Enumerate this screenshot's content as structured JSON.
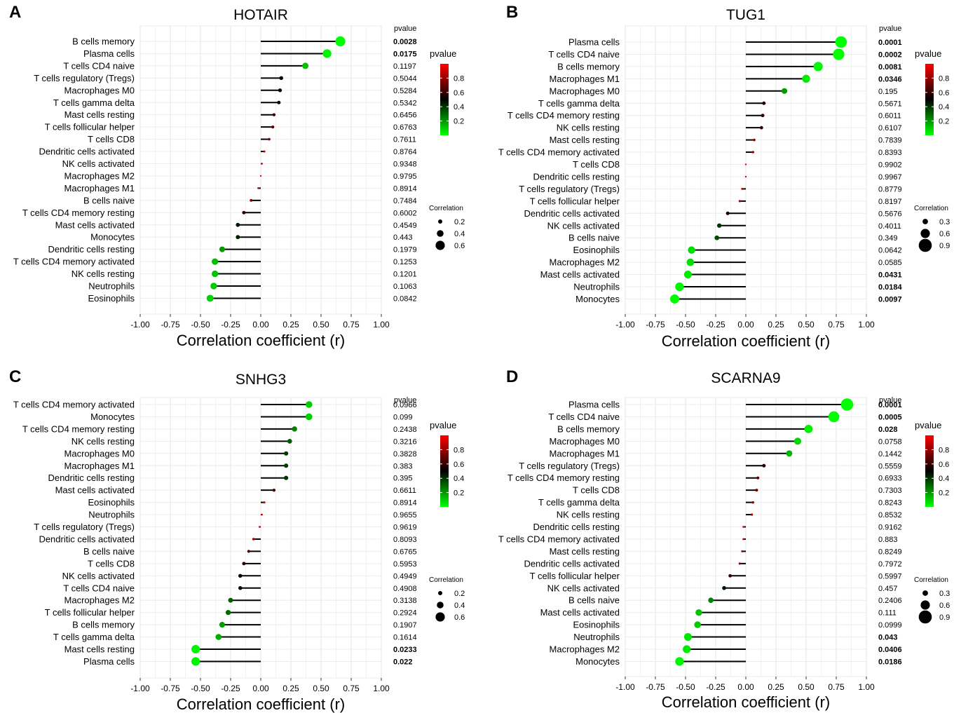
{
  "figure": {
    "pvalue_header": "pvalue",
    "legend": {
      "color_title": "pvalue",
      "color_ticks": [
        "0.8",
        "0.6",
        "0.4",
        "0.2"
      ],
      "size_title": "Correlation",
      "low_color": "#00ff00",
      "mid_color": "#000000",
      "high_color": "#ff0000"
    }
  },
  "chart_data": [
    {
      "type": "lollipop",
      "panel": "A",
      "title": "HOTAIR",
      "xlabel": "Correlation coefficient (r)",
      "xlim": [
        -1,
        1
      ],
      "xticks": [
        "-1.00",
        "-0.75",
        "-0.50",
        "-0.25",
        "0.00",
        "0.25",
        "0.50",
        "0.75",
        "1.00"
      ],
      "categories": [
        "B cells memory",
        "Plasma cells",
        "T cells CD4 naive",
        "T cells regulatory (Tregs)",
        "Macrophages M0",
        "T cells gamma delta",
        "Mast cells resting",
        "T cells follicular helper",
        "T cells CD8",
        "Dendritic cells activated",
        "NK cells activated",
        "Macrophages M2",
        "Macrophages M1",
        "B cells naive",
        "T cells CD4 memory resting",
        "Mast cells activated",
        "Monocytes",
        "Dendritic cells resting",
        "T cells CD4 memory activated",
        "NK cells resting",
        "Neutrophils",
        "Eosinophils"
      ],
      "values": [
        0.66,
        0.55,
        0.37,
        0.17,
        0.16,
        0.15,
        0.11,
        0.1,
        0.07,
        0.03,
        0.01,
        0.0,
        -0.02,
        -0.08,
        -0.14,
        -0.19,
        -0.19,
        -0.32,
        -0.38,
        -0.38,
        -0.39,
        -0.42
      ],
      "pvalues": [
        "0.0028",
        "0.0175",
        "0.1197",
        "0.5044",
        "0.5284",
        "0.5342",
        "0.6456",
        "0.6763",
        "0.7611",
        "0.8764",
        "0.9348",
        "0.9795",
        "0.8914",
        "0.7484",
        "0.6002",
        "0.4549",
        "0.443",
        "0.1979",
        "0.1253",
        "0.1201",
        "0.1063",
        "0.0842"
      ],
      "size_legend": [
        "0.2",
        "0.4",
        "0.6"
      ]
    },
    {
      "type": "lollipop",
      "panel": "B",
      "title": "TUG1",
      "xlabel": "Correlation coefficient (r)",
      "xlim": [
        -1,
        1
      ],
      "xticks": [
        "-1.00",
        "-0.75",
        "-0.50",
        "-0.25",
        "0.00",
        "0.25",
        "0.50",
        "0.75",
        "1.00"
      ],
      "categories": [
        "Plasma cells",
        "T cells CD4 naive",
        "B cells memory",
        "Macrophages M1",
        "Macrophages M0",
        "T cells gamma delta",
        "T cells CD4 memory resting",
        "NK cells resting",
        "Mast cells resting",
        "T cells CD4 memory activated",
        "T cells CD8",
        "Dendritic cells resting",
        "T cells regulatory (Tregs)",
        "T cells follicular helper",
        "Dendritic cells activated",
        "NK cells activated",
        "B cells naive",
        "Eosinophils",
        "Macrophages M2",
        "Mast cells activated",
        "Neutrophils",
        "Monocytes"
      ],
      "values": [
        0.79,
        0.77,
        0.6,
        0.5,
        0.32,
        0.15,
        0.14,
        0.13,
        0.07,
        0.06,
        0.0,
        0.0,
        -0.03,
        -0.05,
        -0.15,
        -0.22,
        -0.24,
        -0.45,
        -0.46,
        -0.48,
        -0.55,
        -0.59
      ],
      "pvalues": [
        "0.0001",
        "0.0002",
        "0.0081",
        "0.0346",
        "0.195",
        "0.5671",
        "0.6011",
        "0.6107",
        "0.7839",
        "0.8393",
        "0.9902",
        "0.9967",
        "0.8779",
        "0.8197",
        "0.5676",
        "0.4011",
        "0.349",
        "0.0642",
        "0.0585",
        "0.0431",
        "0.0184",
        "0.0097"
      ],
      "size_legend": [
        "0.3",
        "0.6",
        "0.9"
      ]
    },
    {
      "type": "lollipop",
      "panel": "C",
      "title": "SNHG3",
      "xlabel": "Correlation coefficient (r)",
      "xlim": [
        -1,
        1
      ],
      "xticks": [
        "-1.00",
        "-0.75",
        "-0.50",
        "-0.25",
        "0.00",
        "0.25",
        "0.50",
        "0.75",
        "1.00"
      ],
      "categories": [
        "T cells CD4 memory activated",
        "Monocytes",
        "T cells CD4 memory resting",
        "NK cells resting",
        "Macrophages M0",
        "Macrophages M1",
        "Dendritic cells resting",
        "Mast cells activated",
        "Eosinophils",
        "Neutrophils",
        "T cells regulatory (Tregs)",
        "Dendritic cells activated",
        "B cells naive",
        "T cells CD8",
        "NK cells activated",
        "T cells CD4 naive",
        "Macrophages M2",
        "T cells follicular helper",
        "B cells memory",
        "T cells gamma delta",
        "Mast cells resting",
        "Plasma cells"
      ],
      "values": [
        0.4,
        0.4,
        0.28,
        0.24,
        0.21,
        0.21,
        0.21,
        0.11,
        0.03,
        0.01,
        -0.01,
        -0.06,
        -0.1,
        -0.14,
        -0.17,
        -0.17,
        -0.25,
        -0.27,
        -0.32,
        -0.35,
        -0.54,
        -0.54
      ],
      "pvalues": [
        "0.0966",
        "0.099",
        "0.2438",
        "0.3216",
        "0.3828",
        "0.383",
        "0.395",
        "0.6611",
        "0.8914",
        "0.9655",
        "0.9619",
        "0.8093",
        "0.6765",
        "0.5953",
        "0.4949",
        "0.4908",
        "0.3138",
        "0.2924",
        "0.1907",
        "0.1614",
        "0.0233",
        "0.022"
      ],
      "size_legend": [
        "0.2",
        "0.4",
        "0.6"
      ]
    },
    {
      "type": "lollipop",
      "panel": "D",
      "title": "SCARNA9",
      "xlabel": "Correlation coefficient (r)",
      "xlim": [
        -1,
        1
      ],
      "xticks": [
        "-1.00",
        "-0.75",
        "-0.50",
        "-0.25",
        "0.00",
        "0.25",
        "0.50",
        "0.75",
        "1.00"
      ],
      "categories": [
        "Plasma cells",
        "T cells CD4 naive",
        "B cells memory",
        "Macrophages M0",
        "Macrophages M1",
        "T cells regulatory (Tregs)",
        "T cells CD4 memory resting",
        "T cells CD8",
        "T cells gamma delta",
        "NK cells resting",
        "Dendritic cells resting",
        "T cells CD4 memory activated",
        "Mast cells resting",
        "Dendritic cells activated",
        "T cells follicular helper",
        "NK cells activated",
        "B cells naive",
        "Mast cells activated",
        "Eosinophils",
        "Neutrophils",
        "Macrophages M2",
        "Monocytes"
      ],
      "values": [
        0.84,
        0.73,
        0.52,
        0.43,
        0.36,
        0.15,
        0.1,
        0.09,
        0.06,
        0.05,
        -0.02,
        -0.02,
        -0.03,
        -0.05,
        -0.13,
        -0.18,
        -0.29,
        -0.39,
        -0.4,
        -0.48,
        -0.49,
        -0.55
      ],
      "pvalues": [
        "0.0001",
        "0.0005",
        "0.028",
        "0.0758",
        "0.1442",
        "0.5559",
        "0.6933",
        "0.7303",
        "0.8243",
        "0.8532",
        "0.9162",
        "0.883",
        "0.8249",
        "0.7972",
        "0.5997",
        "0.457",
        "0.2406",
        "0.111",
        "0.0999",
        "0.043",
        "0.0406",
        "0.0186"
      ],
      "size_legend": [
        "0.3",
        "0.6",
        "0.9"
      ]
    }
  ]
}
